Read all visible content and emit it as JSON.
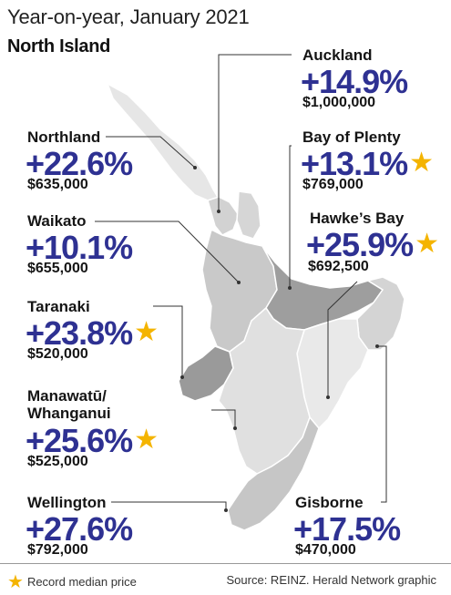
{
  "title": "Year-on-year, January 2021",
  "subtitle": "North Island",
  "regions": {
    "auckland": {
      "name": "Auckland",
      "change": "+14.9%",
      "price": "$1,000,000",
      "record": false
    },
    "northland": {
      "name": "Northland",
      "change": "+22.6%",
      "price": "$635,000",
      "record": false
    },
    "bay_of_plenty": {
      "name": "Bay of Plenty",
      "change": "+13.1%",
      "price": "$769,000",
      "record": true
    },
    "waikato": {
      "name": "Waikato",
      "change": "+10.1%",
      "price": "$655,000",
      "record": false
    },
    "hawkes_bay": {
      "name": "Hawke’s Bay",
      "change": "+25.9%",
      "price": "$692,500",
      "record": true
    },
    "taranaki": {
      "name": "Taranaki",
      "change": "+23.8%",
      "price": "$520,000",
      "record": true
    },
    "manawatu": {
      "name_line1": "Manawatū/",
      "name_line2": "Whanganui",
      "change": "+25.6%",
      "price": "$525,000",
      "record": true
    },
    "wellington": {
      "name": "Wellington",
      "change": "+27.6%",
      "price": "$792,000",
      "record": false
    },
    "gisborne": {
      "name": "Gisborne",
      "change": "+17.5%",
      "price": "$470,000",
      "record": false
    }
  },
  "legend": {
    "star_icon": "star-icon",
    "label": "Record median price"
  },
  "source": "Source: REINZ.  Herald Network graphic",
  "colors": {
    "percent": "#2e3192",
    "star": "#f4b400"
  }
}
